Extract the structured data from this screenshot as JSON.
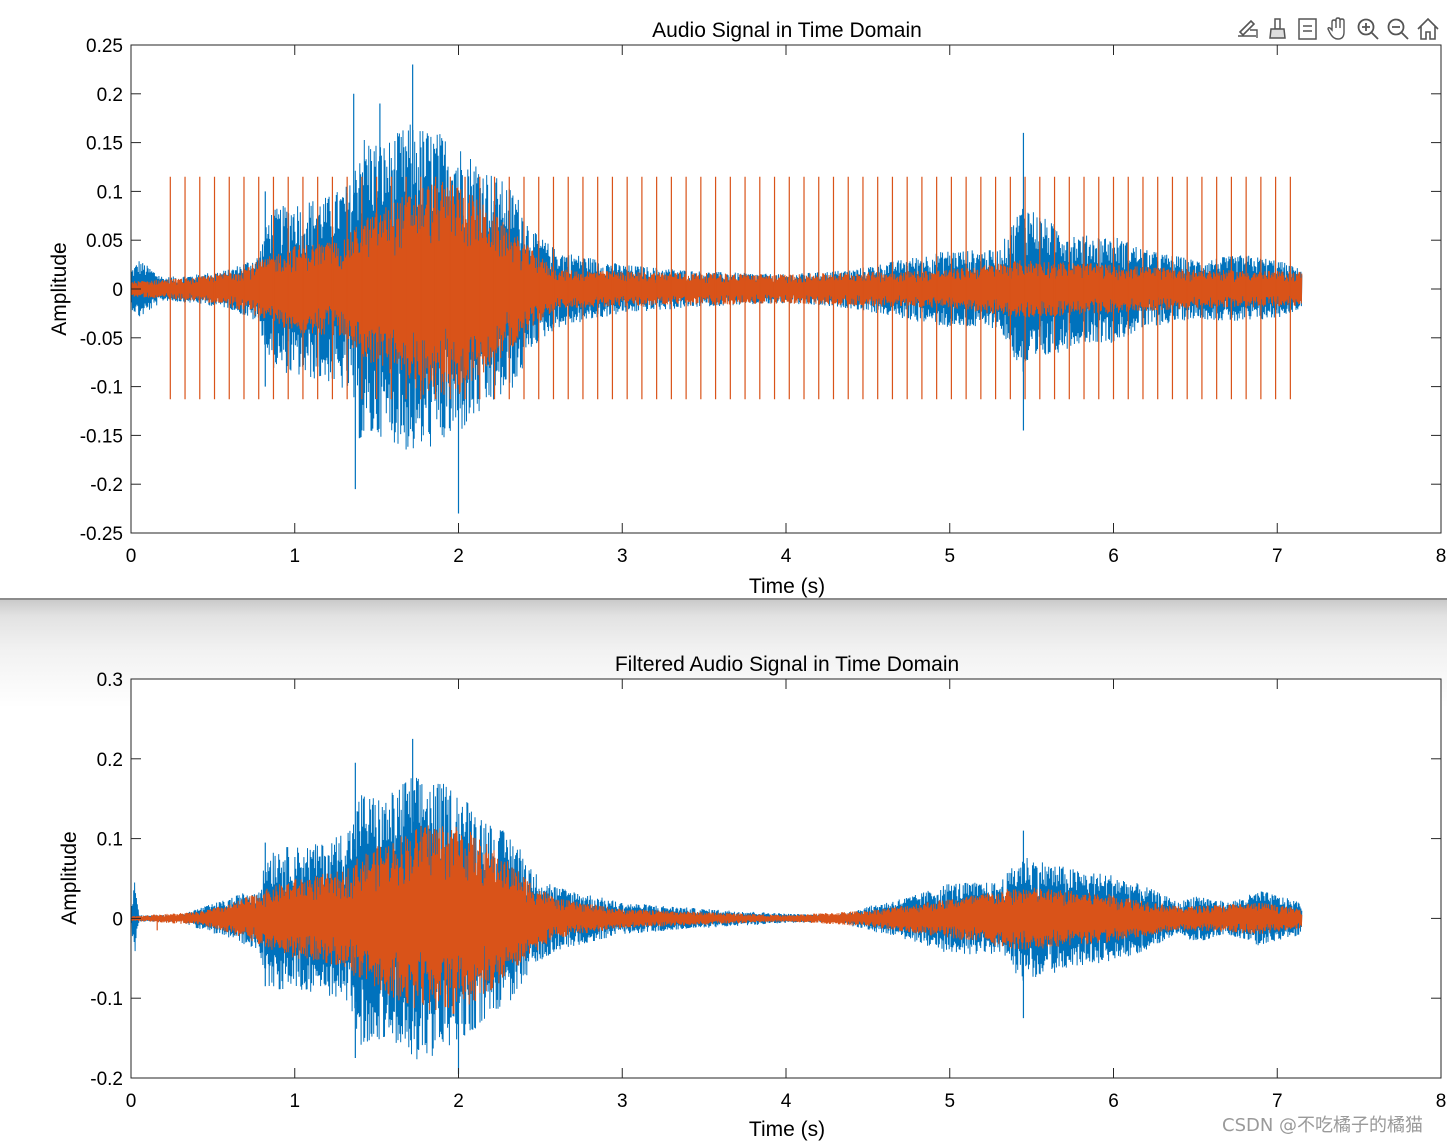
{
  "toolbar": {
    "icons": [
      "edit-export-icon",
      "brush-icon",
      "data-tip-icon",
      "pan-hand-icon",
      "zoom-in-icon",
      "zoom-out-icon",
      "home-icon"
    ]
  },
  "watermark": "CSDN @不吃橘子的橘猫",
  "colors": {
    "original": "#0072BD",
    "filtered": "#D95319"
  },
  "chart_data": [
    {
      "type": "line",
      "title": "Audio Signal in Time Domain",
      "xlabel": "Time (s)",
      "ylabel": "Amplitude",
      "xlim": [
        0,
        8
      ],
      "ylim": [
        -0.25,
        0.25
      ],
      "xticks": [
        0,
        1,
        2,
        3,
        4,
        5,
        6,
        7,
        8
      ],
      "xtick_labels": [
        "0",
        "1",
        "2",
        "3",
        "4",
        "5",
        "6",
        "7",
        "8"
      ],
      "yticks": [
        0.25,
        0.2,
        0.15,
        0.1,
        0.05,
        0,
        -0.05,
        -0.1,
        -0.15,
        -0.2,
        -0.25
      ],
      "ytick_labels": [
        "0.25",
        "0.2",
        "0.15",
        "0.1",
        "0.05",
        "0",
        "-0.05",
        "-0.1",
        "-0.15",
        "-0.2",
        "-0.25"
      ],
      "duration": 7.15,
      "series": [
        {
          "name": "blue",
          "color": "#0072BD",
          "envelope_t": [
            0,
            0.05,
            0.2,
            0.4,
            0.6,
            0.78,
            0.85,
            1.0,
            1.2,
            1.35,
            1.4,
            1.55,
            1.7,
            1.9,
            2.0,
            2.2,
            2.35,
            2.45,
            2.6,
            3.0,
            3.5,
            4.0,
            4.4,
            4.7,
            5.0,
            5.3,
            5.45,
            5.6,
            5.8,
            6.0,
            6.2,
            6.5,
            6.8,
            7.0,
            7.15
          ],
          "envelope_v": [
            0.02,
            0.03,
            0.012,
            0.015,
            0.02,
            0.035,
            0.08,
            0.09,
            0.095,
            0.11,
            0.16,
            0.15,
            0.17,
            0.16,
            0.15,
            0.12,
            0.1,
            0.06,
            0.04,
            0.025,
            0.018,
            0.015,
            0.02,
            0.03,
            0.04,
            0.04,
            0.09,
            0.07,
            0.055,
            0.055,
            0.04,
            0.03,
            0.035,
            0.03,
            0.02
          ],
          "peaks": [
            {
              "t": 1.36,
              "value": 0.2
            },
            {
              "t": 1.37,
              "value": -0.205
            },
            {
              "t": 1.72,
              "value": 0.23
            },
            {
              "t": 2.0,
              "value": -0.23
            },
            {
              "t": 1.52,
              "value": 0.19
            },
            {
              "t": 5.45,
              "value": 0.16
            },
            {
              "t": 5.45,
              "value": -0.145
            },
            {
              "t": 0.82,
              "value": 0.1
            },
            {
              "t": 0.82,
              "value": -0.1
            }
          ]
        },
        {
          "name": "orange",
          "color": "#D95319",
          "envelope_t": [
            0,
            0.2,
            0.4,
            0.6,
            0.8,
            1.0,
            1.3,
            1.4,
            1.6,
            1.8,
            2.0,
            2.2,
            2.45,
            2.6,
            3.0,
            4.0,
            5.0,
            5.45,
            6.0,
            6.5,
            7.15
          ],
          "envelope_v": [
            0.008,
            0.01,
            0.012,
            0.018,
            0.03,
            0.045,
            0.05,
            0.07,
            0.09,
            0.11,
            0.11,
            0.08,
            0.04,
            0.02,
            0.018,
            0.015,
            0.02,
            0.03,
            0.025,
            0.02,
            0.018
          ],
          "impulse_start": 0.24,
          "impulse_end": 7.14,
          "impulse_period": 0.09,
          "impulse_high": 0.115,
          "impulse_low": -0.113
        }
      ]
    },
    {
      "type": "line",
      "title": "Filtered Audio Signal in Time Domain",
      "xlabel": "Time (s)",
      "ylabel": "Amplitude",
      "xlim": [
        0,
        8
      ],
      "ylim": [
        -0.2,
        0.3
      ],
      "xticks": [
        0,
        1,
        2,
        3,
        4,
        5,
        6,
        7,
        8
      ],
      "xtick_labels": [
        "0",
        "1",
        "2",
        "3",
        "4",
        "5",
        "6",
        "7",
        "8"
      ],
      "yticks": [
        0.3,
        0.2,
        0.1,
        0,
        -0.1,
        -0.2
      ],
      "ytick_labels": [
        "0.3",
        "0.2",
        "0.1",
        "0",
        "-0.1",
        "-0.2"
      ],
      "duration": 7.15,
      "series": [
        {
          "name": "blue",
          "color": "#0072BD",
          "envelope_t": [
            0,
            0.02,
            0.05,
            0.3,
            0.4,
            0.6,
            0.78,
            0.85,
            1.0,
            1.2,
            1.35,
            1.4,
            1.55,
            1.7,
            1.9,
            2.0,
            2.2,
            2.35,
            2.45,
            2.6,
            3.0,
            3.5,
            4.0,
            4.3,
            4.5,
            4.8,
            5.0,
            5.3,
            5.45,
            5.6,
            5.8,
            6.0,
            6.2,
            6.4,
            6.5,
            6.7,
            6.9,
            7.15
          ],
          "envelope_v": [
            0.005,
            0.05,
            0.004,
            0.004,
            0.012,
            0.025,
            0.04,
            0.09,
            0.09,
            0.095,
            0.12,
            0.16,
            0.15,
            0.18,
            0.17,
            0.16,
            0.12,
            0.1,
            0.06,
            0.04,
            0.02,
            0.012,
            0.006,
            0.004,
            0.015,
            0.03,
            0.045,
            0.045,
            0.08,
            0.07,
            0.06,
            0.055,
            0.04,
            0.02,
            0.03,
            0.02,
            0.035,
            0.02
          ],
          "peaks": [
            {
              "t": 1.37,
              "value": 0.195
            },
            {
              "t": 1.37,
              "value": -0.175
            },
            {
              "t": 1.72,
              "value": 0.225
            },
            {
              "t": 2.0,
              "value": -0.195
            },
            {
              "t": 5.45,
              "value": 0.11
            },
            {
              "t": 5.45,
              "value": -0.125
            },
            {
              "t": 0.82,
              "value": 0.095
            },
            {
              "t": 0.82,
              "value": -0.085
            }
          ]
        },
        {
          "name": "orange",
          "color": "#D95319",
          "envelope_t": [
            0,
            0.4,
            0.6,
            0.8,
            1.0,
            1.3,
            1.4,
            1.6,
            1.8,
            2.0,
            2.2,
            2.45,
            2.6,
            3.0,
            3.5,
            4.0,
            4.5,
            5.0,
            5.45,
            6.0,
            6.4,
            6.9,
            7.15
          ],
          "envelope_v": [
            0.003,
            0.008,
            0.018,
            0.035,
            0.05,
            0.06,
            0.08,
            0.1,
            0.12,
            0.12,
            0.09,
            0.045,
            0.025,
            0.012,
            0.008,
            0.004,
            0.01,
            0.025,
            0.04,
            0.03,
            0.015,
            0.02,
            0.012
          ],
          "impulse_start": 0.16,
          "impulse_end": 0.16,
          "impulse_period": 1,
          "impulse_high": 0.004,
          "impulse_low": -0.015
        }
      ]
    }
  ]
}
